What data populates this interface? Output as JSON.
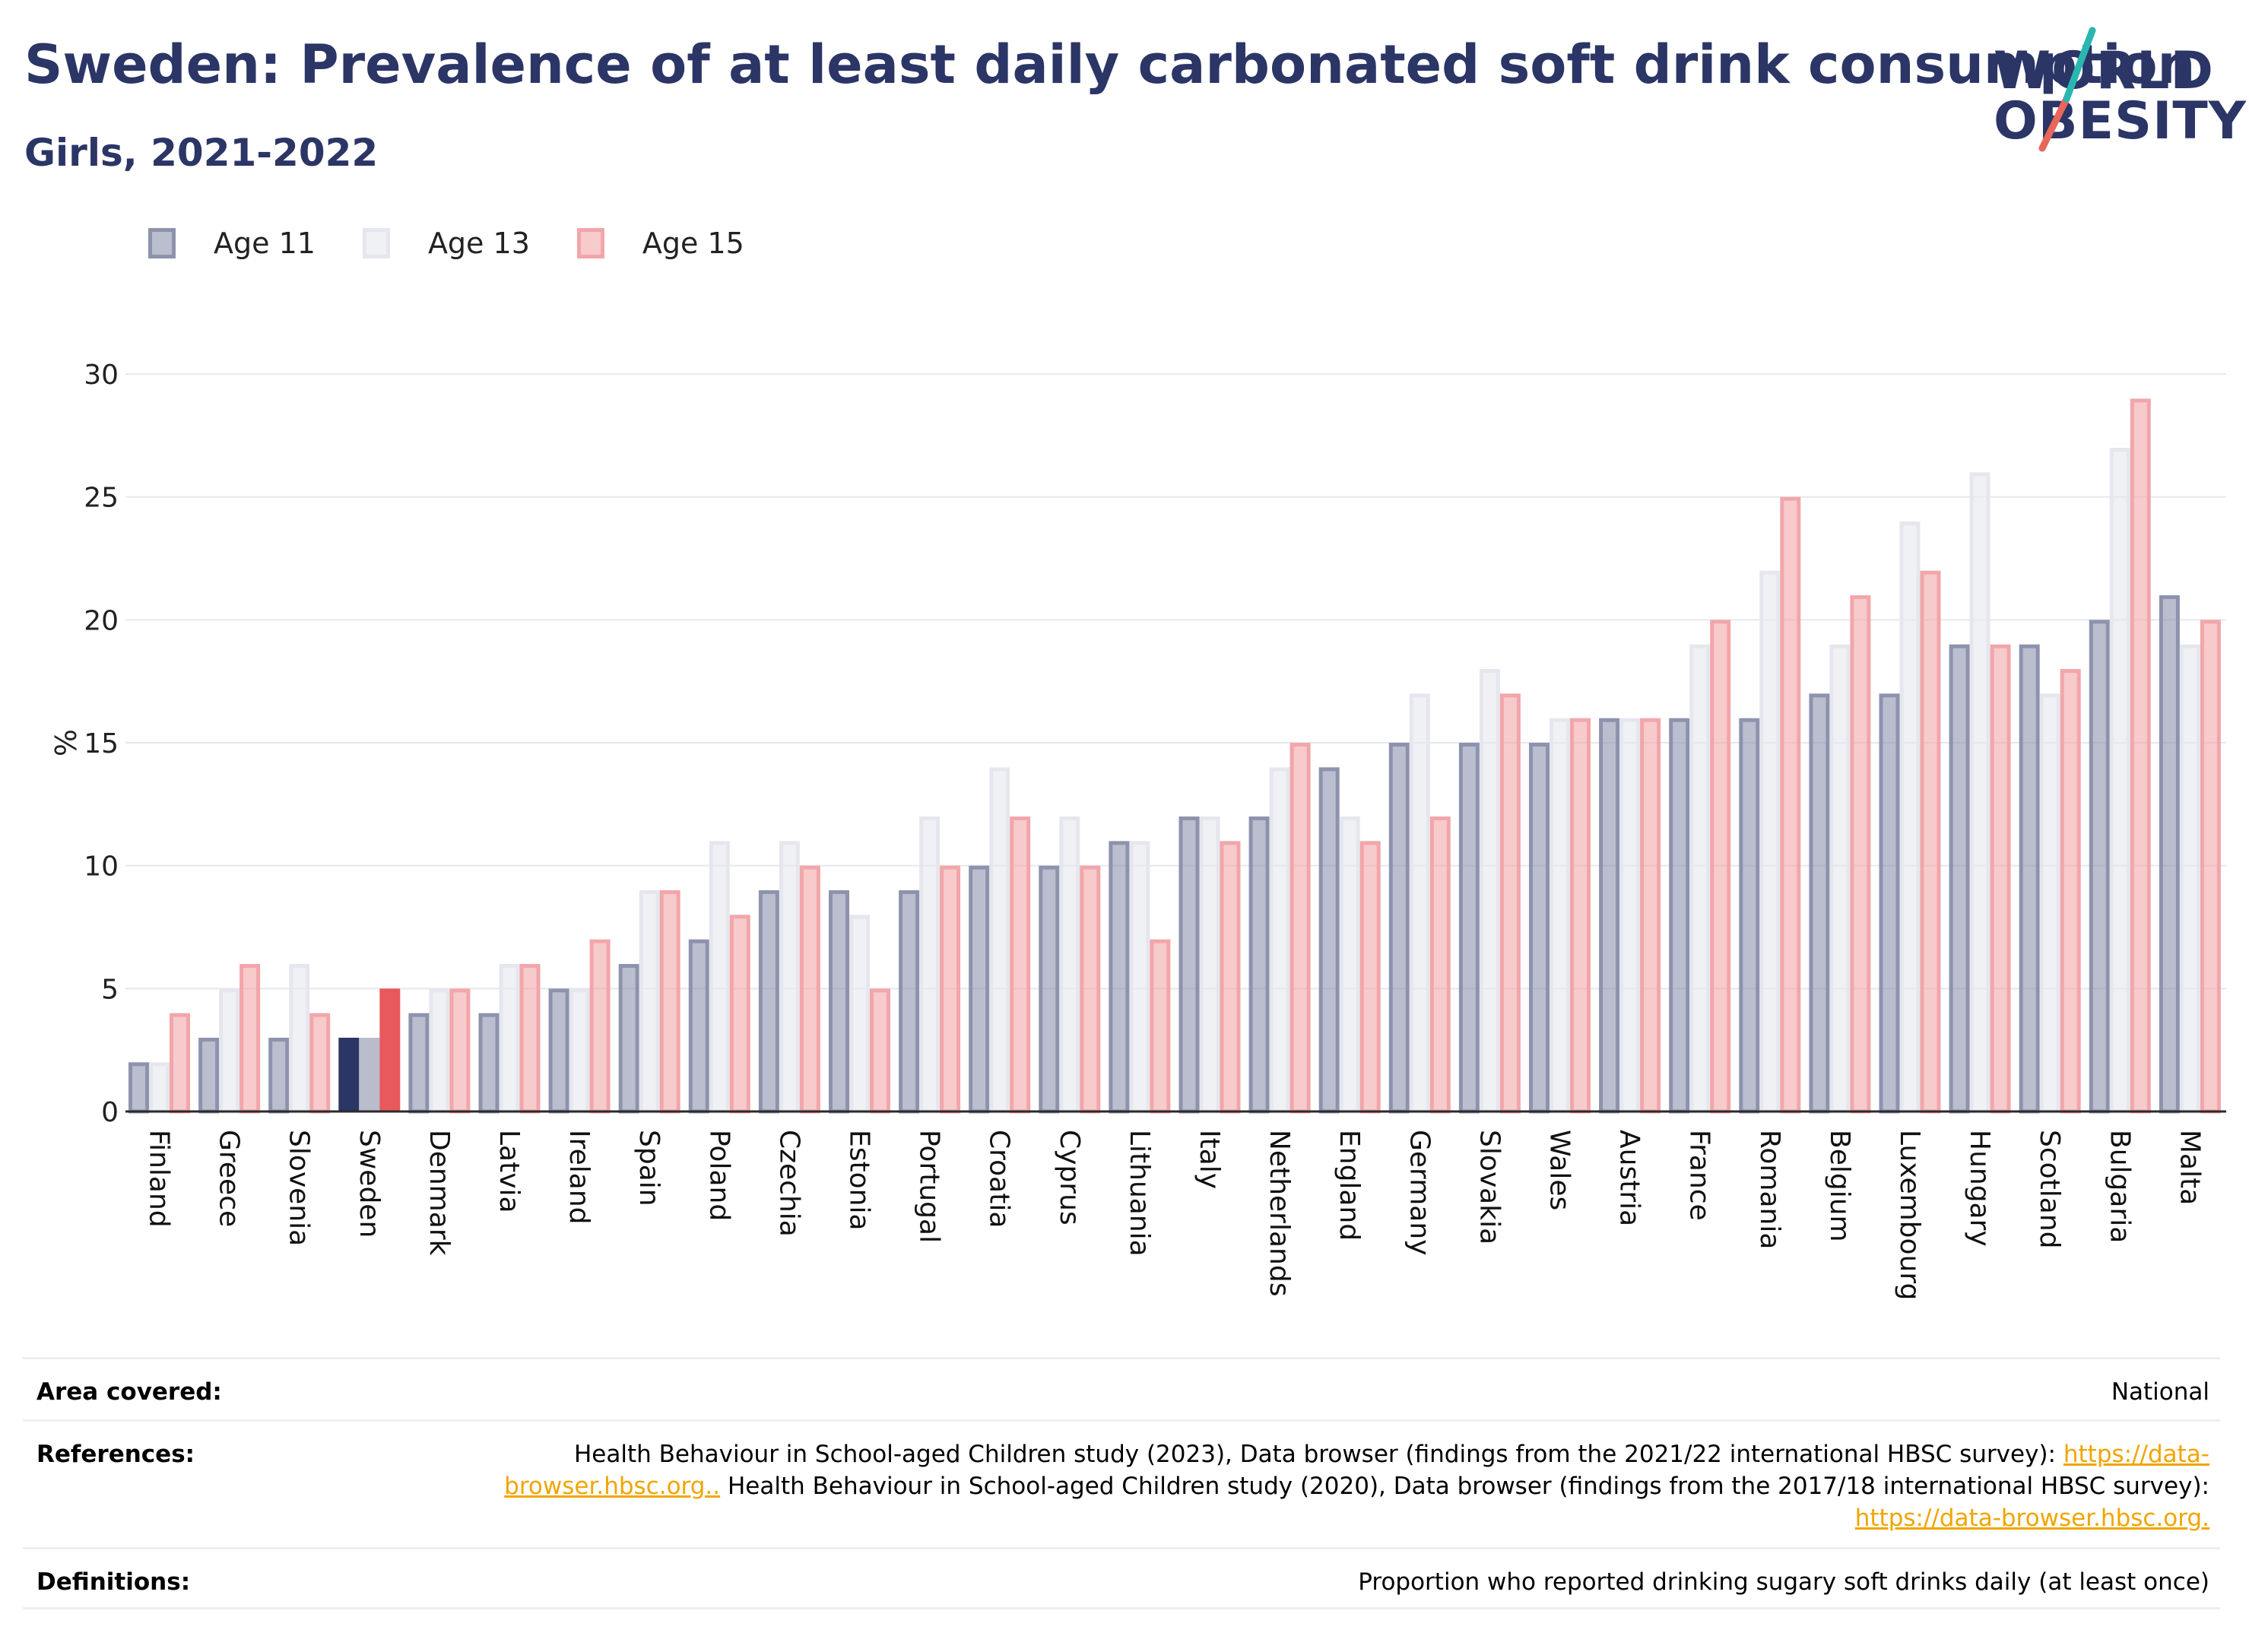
{
  "header": {
    "title": "Sweden: Prevalence of at least daily carbonated soft drink consumption",
    "subtitle": "Girls, 2021-2022"
  },
  "logo": {
    "line1": "WORLD",
    "line2": "OBESITY"
  },
  "colors": {
    "age11": "#8d93ad",
    "age13": "#e6e7ee",
    "age15": "#f2a6aa",
    "highlight_age11": "#2b3566",
    "highlight_age13": "#b9bccb",
    "highlight_age15": "#e8595c",
    "title": "#2b3566"
  },
  "chart_data": {
    "type": "bar",
    "ylabel": "%",
    "ylim": [
      0,
      30
    ],
    "yticks": [
      0,
      5,
      10,
      15,
      20,
      25,
      30
    ],
    "grid": true,
    "legend_position": "top-left",
    "highlight": "Sweden",
    "categories": [
      "Finland",
      "Greece",
      "Slovenia",
      "Sweden",
      "Denmark",
      "Latvia",
      "Ireland",
      "Spain",
      "Poland",
      "Czechia",
      "Estonia",
      "Portugal",
      "Croatia",
      "Cyprus",
      "Lithuania",
      "Italy",
      "Netherlands",
      "England",
      "Germany",
      "Slovakia",
      "Wales",
      "Austria",
      "France",
      "Romania",
      "Belgium",
      "Luxembourg",
      "Hungary",
      "Scotland",
      "Bulgaria",
      "Malta"
    ],
    "series": [
      {
        "name": "Age 11",
        "values": [
          2,
          3,
          3,
          3,
          4,
          4,
          5,
          6,
          7,
          9,
          9,
          9,
          10,
          10,
          11,
          12,
          12,
          14,
          15,
          15,
          15,
          16,
          16,
          16,
          17,
          17,
          19,
          19,
          20,
          21
        ]
      },
      {
        "name": "Age 13",
        "values": [
          2,
          5,
          6,
          3,
          5,
          6,
          5,
          9,
          11,
          11,
          8,
          12,
          14,
          12,
          11,
          12,
          14,
          12,
          17,
          18,
          16,
          16,
          19,
          22,
          19,
          24,
          26,
          17,
          27,
          19
        ]
      },
      {
        "name": "Age 15",
        "values": [
          4,
          6,
          4,
          5,
          5,
          6,
          7,
          9,
          8,
          10,
          5,
          10,
          12,
          10,
          7,
          11,
          15,
          11,
          12,
          17,
          16,
          16,
          20,
          25,
          21,
          22,
          19,
          18,
          29,
          20
        ]
      }
    ]
  },
  "info_table": {
    "area_label": "Area covered:",
    "area_value": "National",
    "references_label": "References:",
    "references_text_1": "Health Behaviour in School-aged Children study (2023), Data browser (findings from the 2021/22 international HBSC survey):",
    "references_link_1": "https://data-browser.hbsc.org..",
    "references_text_2": " Health Behaviour in School-aged Children study (2020), Data browser (findings from the 2017/18 international HBSC survey): ",
    "references_link_2": "https://data-browser.hbsc.org.",
    "definitions_label": "Definitions:",
    "definitions_value": "Proportion who reported drinking sugary soft drinks daily (at least once)"
  }
}
